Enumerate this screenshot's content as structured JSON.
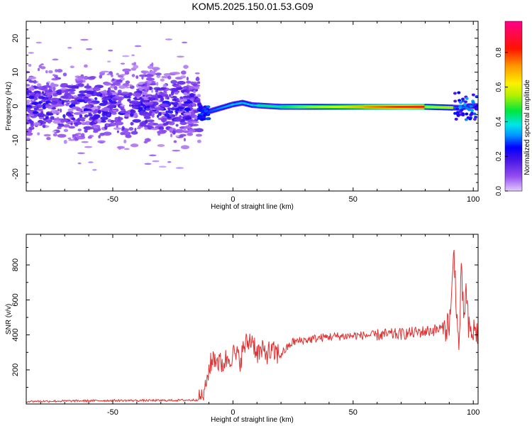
{
  "title": "KOM5.2025.150.01.53.G09",
  "chart_data": [
    {
      "type": "heatmap",
      "xlabel": "Height of straight line (km)",
      "ylabel": "Frequency (Hz)",
      "xlim": [
        -86,
        102
      ],
      "ylim": [
        -25,
        25
      ],
      "xticks": [
        -50,
        0,
        50,
        100
      ],
      "yticks": [
        -20,
        -10,
        0,
        10,
        20
      ],
      "colorbar": {
        "label": "Normalized spectral amplitude",
        "range": [
          0,
          0.98
        ],
        "ticks": [
          0.0,
          0.2,
          0.4,
          0.6,
          0.8
        ]
      },
      "ridge": {
        "x": [
          -86,
          -14,
          -12,
          0,
          4,
          8,
          20,
          40,
          60,
          80,
          95,
          98,
          102
        ],
        "freq": [
          0.5,
          0.5,
          -2.0,
          0.5,
          1.0,
          0.3,
          -0.2,
          -0.2,
          -0.2,
          -0.2,
          -0.5,
          0.0,
          0.0
        ]
      }
    },
    {
      "type": "line",
      "xlabel": "Height of straight line (km)",
      "ylabel": "SNR (v/v)",
      "xlim": [
        -86,
        102
      ],
      "ylim": [
        5,
        975
      ],
      "xticks": [
        -50,
        0,
        50,
        100
      ],
      "yticks": [
        200,
        400,
        600,
        800
      ],
      "color": "#e03030",
      "series": [
        {
          "x": [
            -86,
            -70,
            -50,
            -30,
            -15,
            -12,
            -10,
            -8,
            -5,
            -2,
            0,
            3,
            5,
            8,
            10,
            15,
            20,
            25,
            30,
            40,
            50,
            60,
            70,
            80,
            85,
            88,
            90,
            91,
            92,
            93,
            94,
            95,
            96,
            97,
            98,
            99,
            100,
            102
          ],
          "y": [
            20,
            22,
            25,
            25,
            28,
            60,
            200,
            280,
            230,
            270,
            290,
            260,
            340,
            380,
            300,
            300,
            290,
            360,
            370,
            390,
            395,
            400,
            405,
            420,
            430,
            440,
            470,
            600,
            900,
            550,
            300,
            750,
            500,
            650,
            430,
            410,
            420,
            420
          ]
        }
      ]
    }
  ]
}
